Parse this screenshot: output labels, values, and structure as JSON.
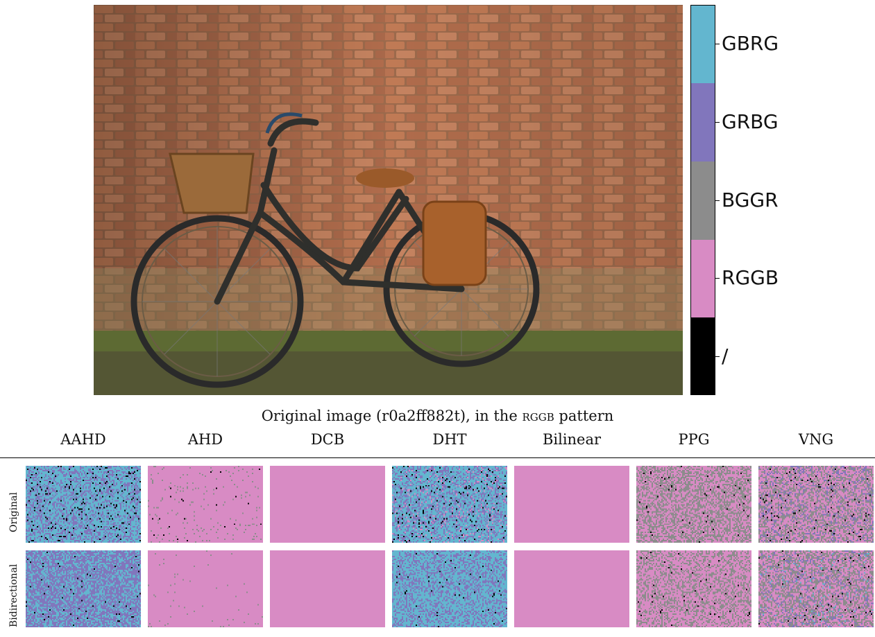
{
  "photo": {
    "description_icon": "bicycle-photo"
  },
  "colorbar": {
    "segments": [
      {
        "label": "GBRG",
        "color": "#63b6cf"
      },
      {
        "label": "GRBG",
        "color": "#8176bc"
      },
      {
        "label": "BGGR",
        "color": "#8c8c8c"
      },
      {
        "label": "RGGB",
        "color": "#d88bc4"
      },
      {
        "label": "/",
        "color": "#000000"
      }
    ]
  },
  "caption": {
    "prefix": "Original image (r0a2ff882t), in the",
    "pattern": "rggb",
    "suffix": "pattern"
  },
  "columns": [
    "AAHD",
    "AHD",
    "DCB",
    "DHT",
    "Bilinear",
    "PPG",
    "VNG"
  ],
  "rows": [
    "Original",
    "Bidirectional"
  ],
  "tiles": {
    "Original": {
      "AAHD": {
        "base": "GBRG",
        "mix": {
          "GRBG": 0.35,
          "/": 0.05
        }
      },
      "AHD": {
        "base": "RGGB",
        "mix": {
          "BGGR": 0.03,
          "/": 0.005
        }
      },
      "DCB": {
        "base": "RGGB",
        "mix": {}
      },
      "DHT": {
        "base": "GBRG",
        "mix": {
          "GRBG": 0.3,
          "RGGB": 0.06,
          "/": 0.04
        }
      },
      "Bilinear": {
        "base": "RGGB",
        "mix": {}
      },
      "PPG": {
        "base": "RGGB",
        "mix": {
          "BGGR": 0.45,
          "/": 0.01
        }
      },
      "VNG": {
        "base": "RGGB",
        "mix": {
          "BGGR": 0.35,
          "GRBG": 0.12,
          "/": 0.02
        }
      }
    },
    "Bidirectional": {
      "AAHD": {
        "base": "GRBG",
        "mix": {
          "GBRG": 0.4,
          "/": 0.01
        }
      },
      "AHD": {
        "base": "RGGB",
        "mix": {
          "BGGR": 0.01
        }
      },
      "DCB": {
        "base": "RGGB",
        "mix": {}
      },
      "DHT": {
        "base": "GBRG",
        "mix": {
          "GRBG": 0.35,
          "/": 0.01
        }
      },
      "Bilinear": {
        "base": "RGGB",
        "mix": {}
      },
      "PPG": {
        "base": "RGGB",
        "mix": {
          "BGGR": 0.35,
          "/": 0.01
        }
      },
      "VNG": {
        "base": "RGGB",
        "mix": {
          "BGGR": 0.38,
          "GRBG": 0.1,
          "GBRG": 0.02,
          "/": 0.01
        }
      }
    }
  }
}
